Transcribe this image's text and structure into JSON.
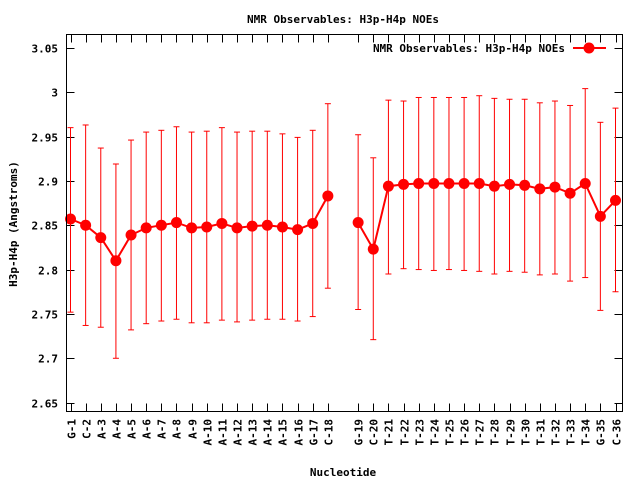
{
  "chart_data": {
    "type": "line",
    "title": "NMR Observables: H3p-H4p NOEs",
    "xlabel": "Nucleotide",
    "ylabel": "H3p-H4p (Angstroms)",
    "ylim": [
      2.64,
      3.065
    ],
    "yticks": [
      "3.05",
      "3",
      "2.95",
      "2.9",
      "2.85",
      "2.8",
      "2.75",
      "2.7",
      "2.65"
    ],
    "ytick_values": [
      3.05,
      3.0,
      2.95,
      2.9,
      2.85,
      2.8,
      2.75,
      2.7,
      2.65
    ],
    "legend_position": "top-right",
    "grid": false,
    "color": "#ff0000",
    "series": [
      {
        "name": "NMR Observables: H3p-H4p NOEs",
        "points": [
          {
            "label": "G-1",
            "pos": 1,
            "y": 2.857,
            "err_low": 2.752,
            "err_high": 2.96
          },
          {
            "label": "C-2",
            "pos": 2,
            "y": 2.85,
            "err_low": 2.737,
            "err_high": 2.963
          },
          {
            "label": "A-3",
            "pos": 3,
            "y": 2.836,
            "err_low": 2.735,
            "err_high": 2.937
          },
          {
            "label": "A-4",
            "pos": 4,
            "y": 2.81,
            "err_low": 2.7,
            "err_high": 2.919
          },
          {
            "label": "A-5",
            "pos": 5,
            "y": 2.839,
            "err_low": 2.732,
            "err_high": 2.946
          },
          {
            "label": "A-6",
            "pos": 6,
            "y": 2.847,
            "err_low": 2.739,
            "err_high": 2.955
          },
          {
            "label": "A-7",
            "pos": 7,
            "y": 2.85,
            "err_low": 2.742,
            "err_high": 2.957
          },
          {
            "label": "A-8",
            "pos": 8,
            "y": 2.853,
            "err_low": 2.744,
            "err_high": 2.961
          },
          {
            "label": "A-9",
            "pos": 9,
            "y": 2.847,
            "err_low": 2.74,
            "err_high": 2.955
          },
          {
            "label": "A-10",
            "pos": 10,
            "y": 2.848,
            "err_low": 2.74,
            "err_high": 2.956
          },
          {
            "label": "A-11",
            "pos": 11,
            "y": 2.852,
            "err_low": 2.743,
            "err_high": 2.96
          },
          {
            "label": "A-12",
            "pos": 12,
            "y": 2.847,
            "err_low": 2.741,
            "err_high": 2.955
          },
          {
            "label": "A-13",
            "pos": 13,
            "y": 2.849,
            "err_low": 2.743,
            "err_high": 2.956
          },
          {
            "label": "A-14",
            "pos": 14,
            "y": 2.85,
            "err_low": 2.744,
            "err_high": 2.956
          },
          {
            "label": "A-15",
            "pos": 15,
            "y": 2.848,
            "err_low": 2.744,
            "err_high": 2.953
          },
          {
            "label": "A-16",
            "pos": 16,
            "y": 2.845,
            "err_low": 2.742,
            "err_high": 2.949
          },
          {
            "label": "G-17",
            "pos": 17,
            "y": 2.852,
            "err_low": 2.747,
            "err_high": 2.957
          },
          {
            "label": "C-18",
            "pos": 18,
            "y": 2.883,
            "err_low": 2.779,
            "err_high": 2.987
          },
          {
            "label": "G-19",
            "pos": 20,
            "y": 2.853,
            "err_low": 2.755,
            "err_high": 2.952
          },
          {
            "label": "C-20",
            "pos": 21,
            "y": 2.823,
            "err_low": 2.721,
            "err_high": 2.926
          },
          {
            "label": "T-21",
            "pos": 22,
            "y": 2.894,
            "err_low": 2.795,
            "err_high": 2.991
          },
          {
            "label": "T-22",
            "pos": 23,
            "y": 2.896,
            "err_low": 2.801,
            "err_high": 2.99
          },
          {
            "label": "T-23",
            "pos": 24,
            "y": 2.897,
            "err_low": 2.8,
            "err_high": 2.994
          },
          {
            "label": "T-24",
            "pos": 25,
            "y": 2.897,
            "err_low": 2.799,
            "err_high": 2.994
          },
          {
            "label": "T-25",
            "pos": 26,
            "y": 2.897,
            "err_low": 2.8,
            "err_high": 2.994
          },
          {
            "label": "T-26",
            "pos": 27,
            "y": 2.897,
            "err_low": 2.799,
            "err_high": 2.994
          },
          {
            "label": "T-27",
            "pos": 28,
            "y": 2.897,
            "err_low": 2.798,
            "err_high": 2.996
          },
          {
            "label": "T-28",
            "pos": 29,
            "y": 2.894,
            "err_low": 2.795,
            "err_high": 2.993
          },
          {
            "label": "T-29",
            "pos": 30,
            "y": 2.896,
            "err_low": 2.798,
            "err_high": 2.992
          },
          {
            "label": "T-30",
            "pos": 31,
            "y": 2.895,
            "err_low": 2.797,
            "err_high": 2.992
          },
          {
            "label": "T-31",
            "pos": 32,
            "y": 2.891,
            "err_low": 2.794,
            "err_high": 2.988
          },
          {
            "label": "T-32",
            "pos": 33,
            "y": 2.893,
            "err_low": 2.795,
            "err_high": 2.99
          },
          {
            "label": "T-33",
            "pos": 34,
            "y": 2.886,
            "err_low": 2.787,
            "err_high": 2.985
          },
          {
            "label": "T-34",
            "pos": 35,
            "y": 2.897,
            "err_low": 2.791,
            "err_high": 3.004
          },
          {
            "label": "G-35",
            "pos": 36,
            "y": 2.86,
            "err_low": 2.754,
            "err_high": 2.966
          },
          {
            "label": "C-36",
            "pos": 37,
            "y": 2.878,
            "err_low": 2.775,
            "err_high": 2.982
          }
        ]
      }
    ]
  }
}
